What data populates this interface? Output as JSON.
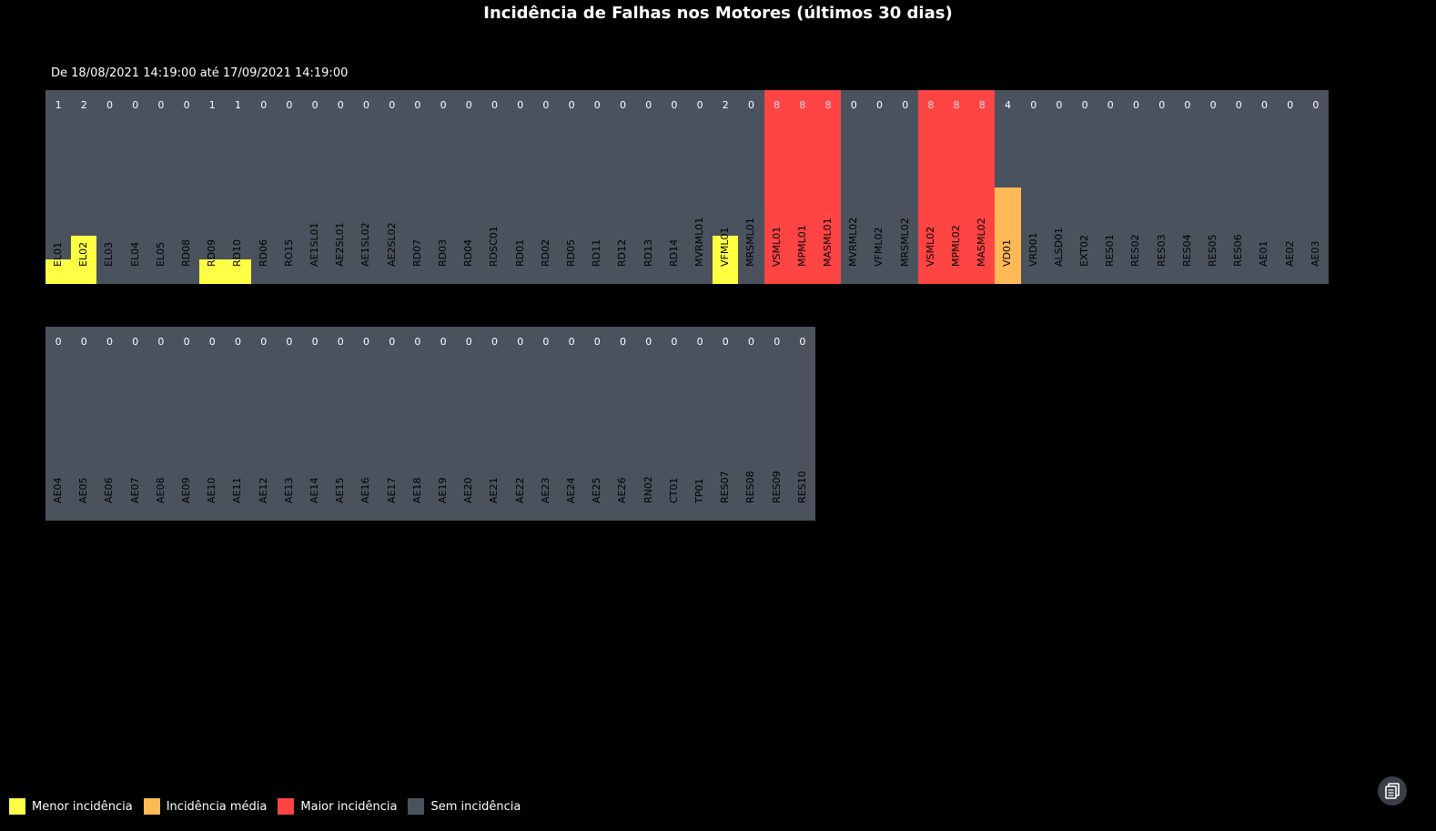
{
  "chart_data": {
    "type": "heatmap",
    "title": "Incidência de Falhas nos Motores (últimos 30 dias)",
    "subtitle": "De 18/08/2021 14:19:00 até 17/09/2021 14:19:00",
    "max_value": 8,
    "colors": {
      "low": "#ffff44",
      "medium": "#ffba55",
      "high": "#ff4444",
      "none": "#4a525d",
      "high_text": "#ffdddd"
    },
    "rows": [
      [
        {
          "label": "EL01",
          "value": 1,
          "level": "low"
        },
        {
          "label": "EL02",
          "value": 2,
          "level": "low"
        },
        {
          "label": "EL03",
          "value": 0,
          "level": "none"
        },
        {
          "label": "EL04",
          "value": 0,
          "level": "none"
        },
        {
          "label": "EL05",
          "value": 0,
          "level": "none"
        },
        {
          "label": "RD08",
          "value": 0,
          "level": "none"
        },
        {
          "label": "RD09",
          "value": 1,
          "level": "low"
        },
        {
          "label": "RD10",
          "value": 1,
          "level": "low"
        },
        {
          "label": "RD06",
          "value": 0,
          "level": "none"
        },
        {
          "label": "RO15",
          "value": 0,
          "level": "none"
        },
        {
          "label": "AE1SL01",
          "value": 0,
          "level": "none"
        },
        {
          "label": "AE2SL01",
          "value": 0,
          "level": "none"
        },
        {
          "label": "AE1SL02",
          "value": 0,
          "level": "none"
        },
        {
          "label": "AE2SL02",
          "value": 0,
          "level": "none"
        },
        {
          "label": "RD07",
          "value": 0,
          "level": "none"
        },
        {
          "label": "RD03",
          "value": 0,
          "level": "none"
        },
        {
          "label": "RD04",
          "value": 0,
          "level": "none"
        },
        {
          "label": "RDSC01",
          "value": 0,
          "level": "none"
        },
        {
          "label": "RD01",
          "value": 0,
          "level": "none"
        },
        {
          "label": "RD02",
          "value": 0,
          "level": "none"
        },
        {
          "label": "RD05",
          "value": 0,
          "level": "none"
        },
        {
          "label": "RD11",
          "value": 0,
          "level": "none"
        },
        {
          "label": "RD12",
          "value": 0,
          "level": "none"
        },
        {
          "label": "RD13",
          "value": 0,
          "level": "none"
        },
        {
          "label": "RD14",
          "value": 0,
          "level": "none"
        },
        {
          "label": "MVRML01",
          "value": 0,
          "level": "none"
        },
        {
          "label": "VFML01",
          "value": 2,
          "level": "low"
        },
        {
          "label": "MRSML01",
          "value": 0,
          "level": "none"
        },
        {
          "label": "VSML01",
          "value": 8,
          "level": "high"
        },
        {
          "label": "MPML01",
          "value": 8,
          "level": "high"
        },
        {
          "label": "MASML01",
          "value": 8,
          "level": "high"
        },
        {
          "label": "MVRML02",
          "value": 0,
          "level": "none"
        },
        {
          "label": "VFML02",
          "value": 0,
          "level": "none"
        },
        {
          "label": "MRSML02",
          "value": 0,
          "level": "none"
        },
        {
          "label": "VSML02",
          "value": 8,
          "level": "high"
        },
        {
          "label": "MPML02",
          "value": 8,
          "level": "high"
        },
        {
          "label": "MASML02",
          "value": 8,
          "level": "high"
        },
        {
          "label": "VD01",
          "value": 4,
          "level": "medium"
        },
        {
          "label": "VRD01",
          "value": 0,
          "level": "none"
        },
        {
          "label": "ALSD01",
          "value": 0,
          "level": "none"
        },
        {
          "label": "EXT02",
          "value": 0,
          "level": "none"
        },
        {
          "label": "RES01",
          "value": 0,
          "level": "none"
        },
        {
          "label": "RES02",
          "value": 0,
          "level": "none"
        },
        {
          "label": "RES03",
          "value": 0,
          "level": "none"
        },
        {
          "label": "RES04",
          "value": 0,
          "level": "none"
        },
        {
          "label": "RES05",
          "value": 0,
          "level": "none"
        },
        {
          "label": "RES06",
          "value": 0,
          "level": "none"
        },
        {
          "label": "AE01",
          "value": 0,
          "level": "none"
        },
        {
          "label": "AE02",
          "value": 0,
          "level": "none"
        },
        {
          "label": "AE03",
          "value": 0,
          "level": "none"
        }
      ],
      [
        {
          "label": "AE04",
          "value": 0,
          "level": "none"
        },
        {
          "label": "AE05",
          "value": 0,
          "level": "none"
        },
        {
          "label": "AE06",
          "value": 0,
          "level": "none"
        },
        {
          "label": "AE07",
          "value": 0,
          "level": "none"
        },
        {
          "label": "AE08",
          "value": 0,
          "level": "none"
        },
        {
          "label": "AE09",
          "value": 0,
          "level": "none"
        },
        {
          "label": "AE10",
          "value": 0,
          "level": "none"
        },
        {
          "label": "AE11",
          "value": 0,
          "level": "none"
        },
        {
          "label": "AE12",
          "value": 0,
          "level": "none"
        },
        {
          "label": "AE13",
          "value": 0,
          "level": "none"
        },
        {
          "label": "AE14",
          "value": 0,
          "level": "none"
        },
        {
          "label": "AE15",
          "value": 0,
          "level": "none"
        },
        {
          "label": "AE16",
          "value": 0,
          "level": "none"
        },
        {
          "label": "AE17",
          "value": 0,
          "level": "none"
        },
        {
          "label": "AE18",
          "value": 0,
          "level": "none"
        },
        {
          "label": "AE19",
          "value": 0,
          "level": "none"
        },
        {
          "label": "AE20",
          "value": 0,
          "level": "none"
        },
        {
          "label": "AE21",
          "value": 0,
          "level": "none"
        },
        {
          "label": "AE22",
          "value": 0,
          "level": "none"
        },
        {
          "label": "AE23",
          "value": 0,
          "level": "none"
        },
        {
          "label": "AE24",
          "value": 0,
          "level": "none"
        },
        {
          "label": "AE25",
          "value": 0,
          "level": "none"
        },
        {
          "label": "AE26",
          "value": 0,
          "level": "none"
        },
        {
          "label": "RN02",
          "value": 0,
          "level": "none"
        },
        {
          "label": "CT01",
          "value": 0,
          "level": "none"
        },
        {
          "label": "TP01",
          "value": 0,
          "level": "none"
        },
        {
          "label": "RES07",
          "value": 0,
          "level": "none"
        },
        {
          "label": "RES08",
          "value": 0,
          "level": "none"
        },
        {
          "label": "RES09",
          "value": 0,
          "level": "none"
        },
        {
          "label": "RES10",
          "value": 0,
          "level": "none"
        }
      ]
    ]
  },
  "legend": [
    {
      "label": "Menor incidência",
      "color": "#ffff44"
    },
    {
      "label": "Incidência média",
      "color": "#ffba55"
    },
    {
      "label": "Maior incidência",
      "color": "#ff4444"
    },
    {
      "label": "Sem incidência",
      "color": "#4a525d"
    }
  ],
  "toolbar": {
    "copy_icon": "copy-icon"
  }
}
